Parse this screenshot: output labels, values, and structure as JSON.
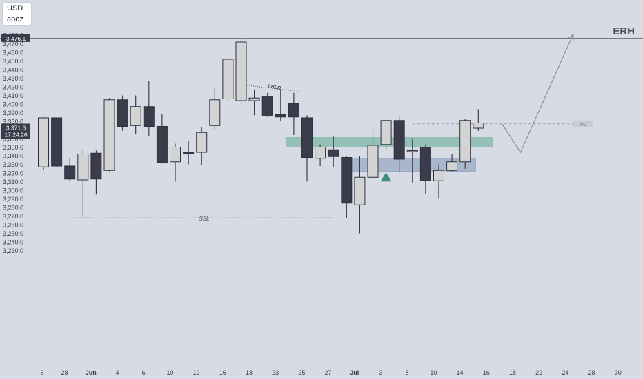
{
  "currency_badge": {
    "currency": "USD",
    "symbol": "apoz"
  },
  "chart_data": {
    "type": "candlestick",
    "colors": {
      "background": "#d7dbe3",
      "bull_fill": "#d2d3d2",
      "bear_fill": "#3a3c4b",
      "wick": "#2f3140",
      "axis_text": "#3a3d4a",
      "demand_zone_green": "#7db7a6",
      "demand_zone_blue": "#99abc4",
      "erh_line": "#3a3d4a",
      "projection": "#8c8f99",
      "triangle": "#3d8c7e"
    },
    "y_axis": {
      "min": 3220,
      "max": 3485,
      "ticks": [
        3230,
        3240,
        3250,
        3260,
        3270,
        3280,
        3290,
        3300,
        3310,
        3320,
        3330,
        3340,
        3350,
        3360,
        3370,
        3380,
        3390,
        3400,
        3410,
        3420,
        3430,
        3440,
        3450,
        3460,
        3470,
        3480
      ],
      "tick_labels": [
        "3,230.0",
        "3,240.0",
        "3,250.0",
        "3,260.0",
        "3,270.0",
        "3,280.0",
        "3,290.0",
        "3,300.0",
        "3,310.0",
        "3,320.0",
        "3,330.0",
        "3,340.0",
        "3,350.0",
        "3,360.0",
        "3,370.0",
        "3,380.0",
        "3,390.0",
        "3,400.0",
        "3,410.0",
        "3,420.0",
        "3,430.0",
        "3,440.0",
        "3,450.0",
        "3,460.0",
        "3,470.0",
        "3,480.0"
      ]
    },
    "x_axis": {
      "ticks": [
        {
          "index": -0.1,
          "label": "6"
        },
        {
          "index": 1.6,
          "label": "28"
        },
        {
          "index": 3.6,
          "label": "Jun"
        },
        {
          "index": 5.6,
          "label": "4"
        },
        {
          "index": 7.6,
          "label": "6"
        },
        {
          "index": 9.6,
          "label": "10"
        },
        {
          "index": 11.6,
          "label": "12"
        },
        {
          "index": 13.6,
          "label": "16"
        },
        {
          "index": 15.6,
          "label": "18"
        },
        {
          "index": 17.6,
          "label": "23"
        },
        {
          "index": 19.6,
          "label": "25"
        },
        {
          "index": 21.6,
          "label": "27"
        },
        {
          "index": 23.6,
          "label": "Jul"
        },
        {
          "index": 25.6,
          "label": "3"
        },
        {
          "index": 27.6,
          "label": "8"
        },
        {
          "index": 29.6,
          "label": "10"
        },
        {
          "index": 31.6,
          "label": "14"
        },
        {
          "index": 33.6,
          "label": "16"
        },
        {
          "index": 35.6,
          "label": "18"
        },
        {
          "index": 37.6,
          "label": "22"
        },
        {
          "index": 39.6,
          "label": "24"
        },
        {
          "index": 41.6,
          "label": "28"
        },
        {
          "index": 43.6,
          "label": "30"
        }
      ]
    },
    "candles": [
      {
        "o": 3327,
        "h": 3385,
        "l": 3324,
        "c": 3384
      },
      {
        "o": 3384,
        "h": 3384,
        "l": 3327,
        "c": 3328
      },
      {
        "o": 3328,
        "h": 3337,
        "l": 3310,
        "c": 3313
      },
      {
        "o": 3312,
        "h": 3347,
        "l": 3269,
        "c": 3342
      },
      {
        "o": 3343,
        "h": 3346,
        "l": 3295,
        "c": 3313
      },
      {
        "o": 3323,
        "h": 3407,
        "l": 3322,
        "c": 3405
      },
      {
        "o": 3405,
        "h": 3410,
        "l": 3369,
        "c": 3374
      },
      {
        "o": 3375,
        "h": 3410,
        "l": 3365,
        "c": 3397
      },
      {
        "o": 3397,
        "h": 3427,
        "l": 3363,
        "c": 3374
      },
      {
        "o": 3374,
        "h": 3388,
        "l": 3331,
        "c": 3332
      },
      {
        "o": 3333,
        "h": 3354,
        "l": 3310,
        "c": 3350
      },
      {
        "o": 3344,
        "h": 3357,
        "l": 3330,
        "c": 3343
      },
      {
        "o": 3344,
        "h": 3373,
        "l": 3329,
        "c": 3367
      },
      {
        "o": 3375,
        "h": 3418,
        "l": 3370,
        "c": 3405
      },
      {
        "o": 3406,
        "h": 3450,
        "l": 3403,
        "c": 3452
      },
      {
        "o": 3404,
        "h": 3476,
        "l": 3399,
        "c": 3472
      },
      {
        "o": 3404,
        "h": 3417,
        "l": 3387,
        "c": 3407
      },
      {
        "o": 3409,
        "h": 3413,
        "l": 3385,
        "c": 3386
      },
      {
        "o": 3388,
        "h": 3418,
        "l": 3380,
        "c": 3385
      },
      {
        "o": 3401,
        "h": 3413,
        "l": 3364,
        "c": 3385
      },
      {
        "o": 3384,
        "h": 3387,
        "l": 3310,
        "c": 3338
      },
      {
        "o": 3337,
        "h": 3353,
        "l": 3328,
        "c": 3350
      },
      {
        "o": 3347,
        "h": 3363,
        "l": 3327,
        "c": 3339
      },
      {
        "o": 3338,
        "h": 3340,
        "l": 3268,
        "c": 3285
      },
      {
        "o": 3283,
        "h": 3340,
        "l": 3250,
        "c": 3315
      },
      {
        "o": 3315,
        "h": 3375,
        "l": 3313,
        "c": 3352
      },
      {
        "o": 3353,
        "h": 3380,
        "l": 3347,
        "c": 3381
      },
      {
        "o": 3381,
        "h": 3385,
        "l": 3321,
        "c": 3336
      },
      {
        "o": 3345,
        "h": 3360,
        "l": 3309,
        "c": 3346
      },
      {
        "o": 3350,
        "h": 3353,
        "l": 3296,
        "c": 3311
      },
      {
        "o": 3311,
        "h": 3330,
        "l": 3290,
        "c": 3323
      },
      {
        "o": 3323,
        "h": 3342,
        "l": 3322,
        "c": 3333
      },
      {
        "o": 3333,
        "h": 3383,
        "l": 3325,
        "c": 3381
      },
      {
        "o": 3372,
        "h": 3394,
        "l": 3369,
        "c": 3378
      }
    ],
    "levels": [
      {
        "label": "ERH",
        "price": 3476
      },
      {
        "label": "SSL",
        "price": 3268
      },
      {
        "label": "WO",
        "price": 3377
      }
    ],
    "zones": [
      {
        "price_top": 3361,
        "price_bottom": 3350,
        "color": "green"
      },
      {
        "price_top": 3337,
        "price_bottom": 3322,
        "color": "blue"
      }
    ],
    "annotations": [
      {
        "text": "LBLR",
        "kind": "trendline"
      },
      {
        "kind": "up-triangle",
        "price": 3315
      }
    ],
    "projection": [
      {
        "i": 34.8,
        "p": 3377
      },
      {
        "i": 36.2,
        "p": 3344
      },
      {
        "i": 40.2,
        "p": 3481
      }
    ],
    "current_price": {
      "price_label": "3,371.6",
      "countdown": "17:24:26",
      "top_label": "3,476.1"
    }
  }
}
